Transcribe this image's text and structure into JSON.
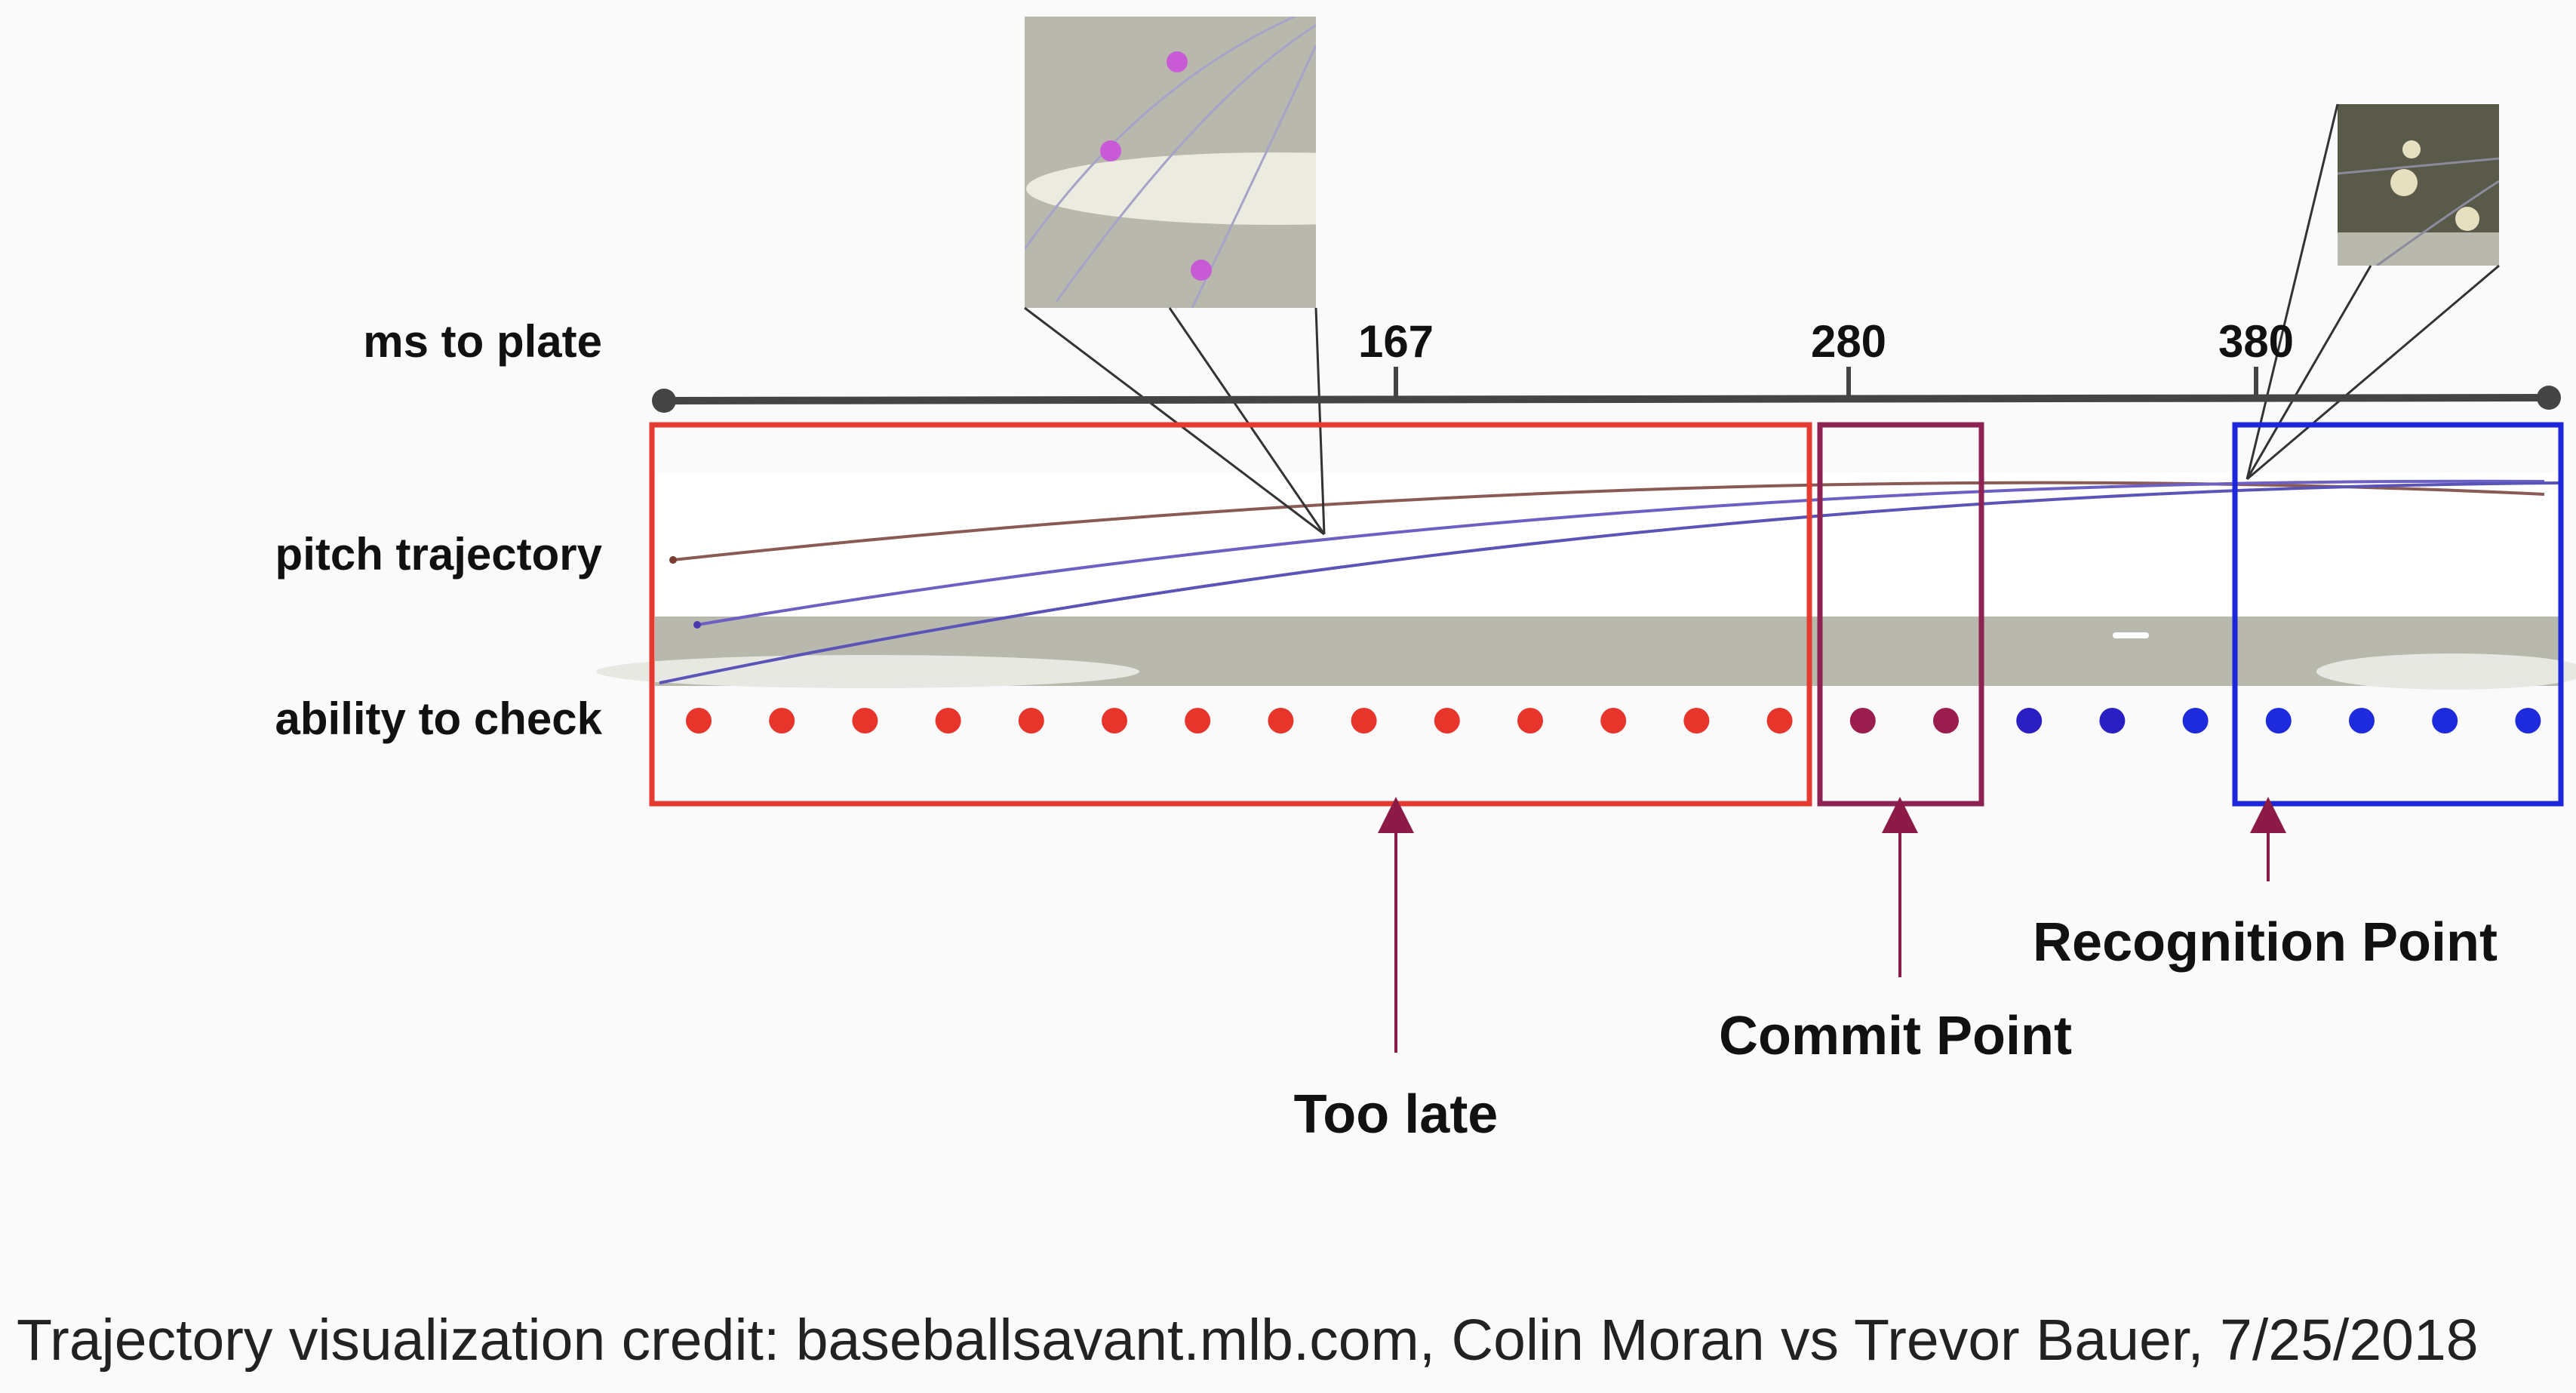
{
  "row_labels": {
    "ms_to_plate": "ms to plate",
    "pitch_trajectory": "pitch trajectory",
    "ability_to_check": "ability to check"
  },
  "timeline_ticks": [
    "167",
    "280",
    "380"
  ],
  "callouts": {
    "too_late": "Too late",
    "commit_point": "Commit Point",
    "recognition_point": "Recognition Point"
  },
  "credit": "Trajectory visualization credit: baseballsavant.mlb.com, Colin Moran vs Trevor Bauer, 7/25/2018",
  "dots": [
    {
      "color": "#e8352c"
    },
    {
      "color": "#e8352c"
    },
    {
      "color": "#e8352c"
    },
    {
      "color": "#e8352c"
    },
    {
      "color": "#e8352c"
    },
    {
      "color": "#e8352c"
    },
    {
      "color": "#e8352c"
    },
    {
      "color": "#e8352c"
    },
    {
      "color": "#e8352c"
    },
    {
      "color": "#e8352c"
    },
    {
      "color": "#e8352c"
    },
    {
      "color": "#e8352c"
    },
    {
      "color": "#e8352c"
    },
    {
      "color": "#e8352c"
    },
    {
      "color": "#9b1d4e"
    },
    {
      "color": "#9b1d4e"
    },
    {
      "color": "#2a1fc2"
    },
    {
      "color": "#2a1fc2"
    },
    {
      "color": "#1d2bdc"
    },
    {
      "color": "#1d2bdc"
    },
    {
      "color": "#1d2bdc"
    },
    {
      "color": "#1d2bdc"
    },
    {
      "color": "#1d2bdc"
    }
  ],
  "colors": {
    "too_late_box": "#e43a2f",
    "commit_box": "#8c2352",
    "recognition_box": "#1c27d9",
    "arrow": "#8c1a47",
    "timeline": "#444444",
    "ground": "#b8b9ac"
  }
}
